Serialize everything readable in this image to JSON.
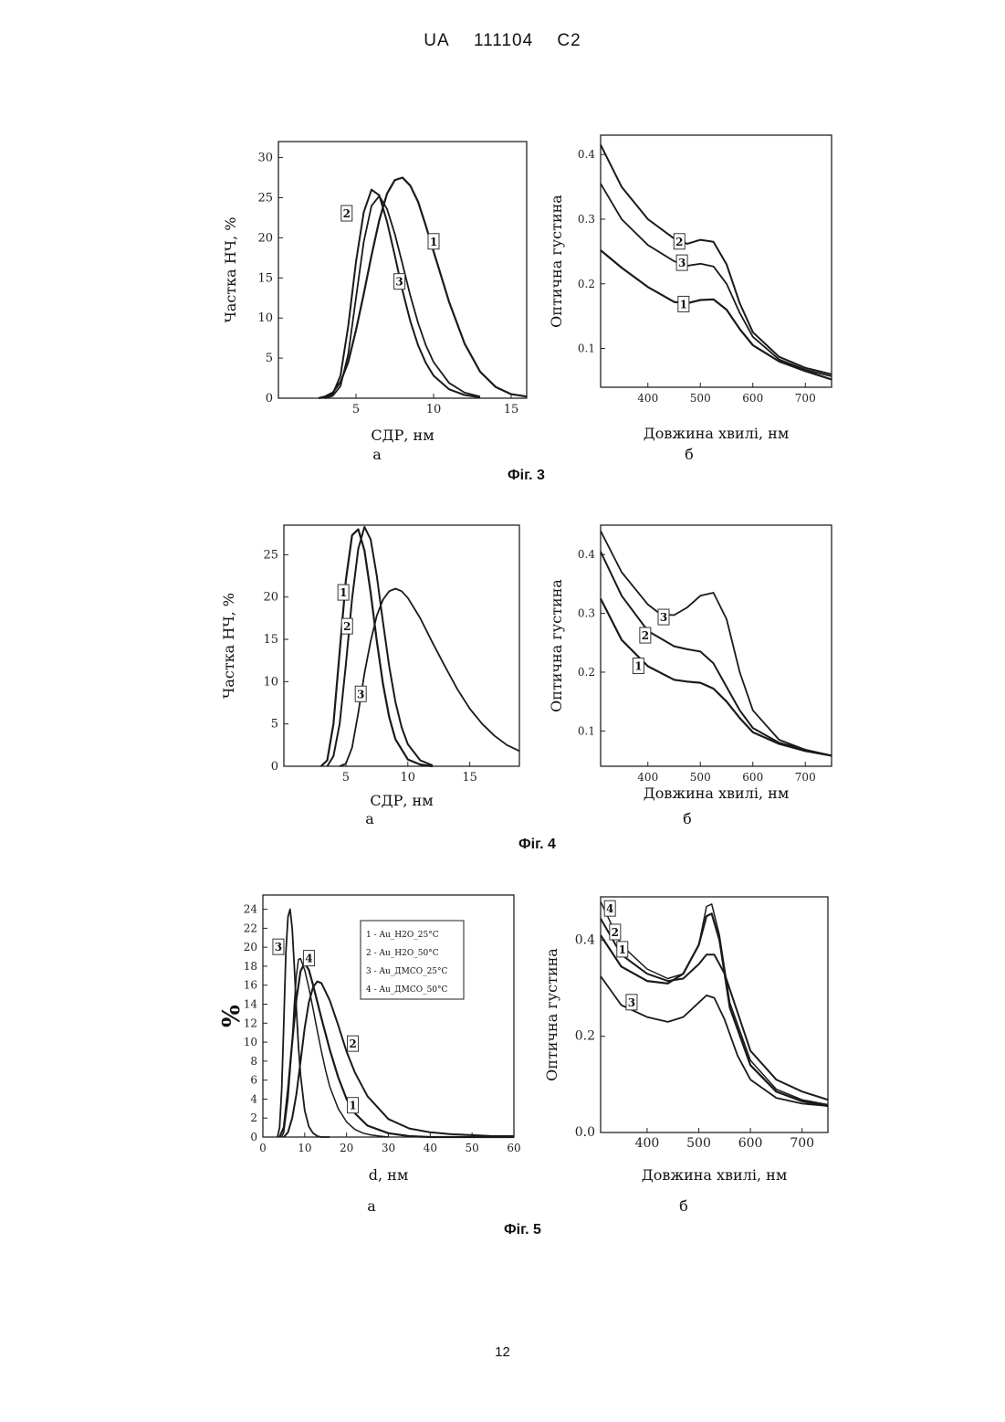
{
  "header": {
    "country": "UA",
    "number": "111104",
    "kind": "C2"
  },
  "page_number": "12",
  "chart_data": [
    {
      "id": "f3a",
      "type": "line",
      "xlabel": "СДР, нм",
      "ylabel": "Частка НЧ, %",
      "sublabel": "а",
      "xlim": [
        0,
        16
      ],
      "ylim": [
        0,
        32
      ],
      "xticks": [
        5,
        10,
        15
      ],
      "yticks": [
        0,
        5,
        10,
        15,
        20,
        25,
        30
      ],
      "series": [
        {
          "label": "1",
          "x": [
            2.6,
            3,
            3.5,
            4,
            4.5,
            5,
            5.5,
            6,
            6.5,
            7,
            7.5,
            8,
            8.5,
            9,
            9.5,
            10,
            11,
            12,
            13,
            14,
            15,
            16
          ],
          "y": [
            0,
            0.2,
            0.7,
            2,
            4.5,
            8.5,
            13,
            17.8,
            22.2,
            25.5,
            27.2,
            27.5,
            26.5,
            24.5,
            21.5,
            18.3,
            12,
            6.8,
            3.3,
            1.4,
            0.5,
            0.2
          ]
        },
        {
          "label": "2",
          "x": [
            3,
            3.5,
            4,
            4.5,
            5,
            5.5,
            6,
            6.5,
            7,
            7.5,
            8,
            8.5,
            9,
            9.5,
            10,
            11,
            12,
            13
          ],
          "y": [
            0,
            0.5,
            2.8,
            9,
            17,
            23.2,
            26,
            25.3,
            22,
            17.8,
            13.4,
            9.6,
            6.6,
            4.4,
            2.8,
            1.1,
            0.4,
            0.1
          ]
        },
        {
          "label": "3",
          "x": [
            3,
            3.5,
            4,
            4.5,
            5,
            5.5,
            6,
            6.5,
            7,
            7.5,
            8,
            8.5,
            9,
            9.5,
            10,
            11,
            12,
            13
          ],
          "y": [
            0,
            0.3,
            1.5,
            5.5,
            12.5,
            19.5,
            24,
            25.2,
            23.6,
            20.5,
            16.7,
            12.8,
            9.4,
            6.6,
            4.5,
            1.9,
            0.7,
            0.2
          ]
        }
      ],
      "labels": [
        {
          "text": "1",
          "x": 10,
          "y": 19.5
        },
        {
          "text": "2",
          "x": 4.4,
          "y": 23
        },
        {
          "text": "3",
          "x": 7.8,
          "y": 14.5
        }
      ]
    },
    {
      "id": "f3b",
      "type": "line",
      "xlabel": "Довжина хвилі, нм",
      "ylabel": "Оптична густина",
      "sublabel": "б",
      "xlim": [
        310,
        750
      ],
      "ylim": [
        0.04,
        0.43
      ],
      "xticks": [
        400,
        500,
        600,
        700
      ],
      "yticks": [
        0.1,
        0.2,
        0.3,
        0.4
      ],
      "series": [
        {
          "label": "1",
          "x": [
            310,
            350,
            400,
            450,
            475,
            500,
            525,
            550,
            575,
            600,
            650,
            700,
            750
          ],
          "y": [
            0.252,
            0.225,
            0.195,
            0.172,
            0.17,
            0.175,
            0.176,
            0.16,
            0.13,
            0.105,
            0.08,
            0.065,
            0.052
          ]
        },
        {
          "label": "2",
          "x": [
            310,
            350,
            400,
            450,
            475,
            500,
            525,
            550,
            575,
            600,
            650,
            700,
            750
          ],
          "y": [
            0.415,
            0.35,
            0.3,
            0.27,
            0.262,
            0.268,
            0.265,
            0.23,
            0.17,
            0.125,
            0.087,
            0.07,
            0.06
          ]
        },
        {
          "label": "3",
          "x": [
            310,
            350,
            400,
            450,
            475,
            500,
            525,
            550,
            575,
            600,
            650,
            700,
            750
          ],
          "y": [
            0.355,
            0.3,
            0.26,
            0.235,
            0.228,
            0.231,
            0.227,
            0.2,
            0.155,
            0.118,
            0.083,
            0.067,
            0.057
          ]
        }
      ],
      "labels": [
        {
          "text": "2",
          "x": 460,
          "y": 0.265
        },
        {
          "text": "3",
          "x": 465,
          "y": 0.232
        },
        {
          "text": "1",
          "x": 468,
          "y": 0.168
        }
      ]
    },
    {
      "id": "f4a",
      "type": "line",
      "xlabel": "СДР, нм",
      "ylabel": "Частка НЧ, %",
      "sublabel": "а",
      "xlim": [
        0,
        19
      ],
      "ylim": [
        0,
        28.5
      ],
      "xticks": [
        5,
        10,
        15
      ],
      "yticks": [
        0,
        5,
        10,
        15,
        20,
        25
      ],
      "series": [
        {
          "label": "1",
          "x": [
            3,
            3.5,
            4,
            4.5,
            5,
            5.5,
            6,
            6.5,
            7,
            7.5,
            8,
            8.5,
            9,
            10,
            11,
            12
          ],
          "y": [
            0,
            0.7,
            5,
            13.5,
            22,
            27.3,
            28,
            25.5,
            20.5,
            14.8,
            9.7,
            5.8,
            3.2,
            0.8,
            0.2,
            0
          ]
        },
        {
          "label": "2",
          "x": [
            3.5,
            4,
            4.5,
            5,
            5.5,
            6,
            6.5,
            7,
            7.5,
            8,
            8.5,
            9,
            9.5,
            10,
            11,
            12
          ],
          "y": [
            0,
            1.2,
            5,
            12,
            19.8,
            25.7,
            28.3,
            26.8,
            22.5,
            17,
            11.8,
            7.6,
            4.6,
            2.6,
            0.7,
            0.1
          ]
        },
        {
          "label": "3",
          "x": [
            4.5,
            5,
            5.5,
            6,
            6.5,
            7,
            7.5,
            8,
            8.5,
            9,
            9.5,
            10,
            11,
            12,
            13,
            14,
            15,
            16,
            17,
            18,
            19
          ],
          "y": [
            0,
            0.3,
            2.2,
            6.3,
            11,
            14.8,
            17.8,
            19.7,
            20.7,
            21,
            20.7,
            19.9,
            17.5,
            14.6,
            11.8,
            9.1,
            6.8,
            5,
            3.6,
            2.5,
            1.8
          ]
        }
      ],
      "labels": [
        {
          "text": "1",
          "x": 4.8,
          "y": 20.5
        },
        {
          "text": "2",
          "x": 5.1,
          "y": 16.5
        },
        {
          "text": "3",
          "x": 6.2,
          "y": 8.5
        }
      ]
    },
    {
      "id": "f4b",
      "type": "line",
      "xlabel": "Довжина хвилі, нм",
      "ylabel": "Оптична густина",
      "sublabel": "б",
      "xlim": [
        310,
        750
      ],
      "ylim": [
        0.04,
        0.45
      ],
      "xticks": [
        400,
        500,
        600,
        700
      ],
      "yticks": [
        0.1,
        0.2,
        0.3,
        0.4
      ],
      "series": [
        {
          "label": "1",
          "x": [
            310,
            350,
            400,
            450,
            475,
            500,
            525,
            550,
            575,
            600,
            650,
            700,
            750
          ],
          "y": [
            0.325,
            0.255,
            0.21,
            0.187,
            0.184,
            0.182,
            0.172,
            0.15,
            0.122,
            0.098,
            0.078,
            0.066,
            0.058
          ]
        },
        {
          "label": "2",
          "x": [
            310,
            350,
            400,
            450,
            475,
            500,
            525,
            550,
            575,
            600,
            650,
            700,
            750
          ],
          "y": [
            0.405,
            0.33,
            0.27,
            0.244,
            0.239,
            0.235,
            0.215,
            0.175,
            0.135,
            0.105,
            0.08,
            0.068,
            0.058
          ]
        },
        {
          "label": "3",
          "x": [
            310,
            350,
            400,
            425,
            450,
            475,
            500,
            525,
            550,
            575,
            600,
            650,
            700,
            750
          ],
          "y": [
            0.44,
            0.37,
            0.315,
            0.298,
            0.297,
            0.31,
            0.33,
            0.335,
            0.29,
            0.2,
            0.135,
            0.085,
            0.068,
            0.058
          ]
        }
      ],
      "labels": [
        {
          "text": "3",
          "x": 430,
          "y": 0.293
        },
        {
          "text": "2",
          "x": 395,
          "y": 0.262
        },
        {
          "text": "1",
          "x": 382,
          "y": 0.21
        }
      ]
    },
    {
      "id": "f5a",
      "type": "line",
      "xlabel": "d, нм",
      "ylabel": "%",
      "sublabel": "а",
      "xlim": [
        0,
        60
      ],
      "ylim": [
        0,
        25.5
      ],
      "xticks": [
        0,
        10,
        20,
        30,
        40,
        50,
        60
      ],
      "yticks": [
        0,
        2,
        4,
        6,
        8,
        10,
        12,
        14,
        16,
        18,
        20,
        22,
        24
      ],
      "legend": [
        "1 - Au_H2O_25°C",
        "2 - Au_H2O_50°C",
        "3 - Au_ДМСО_25°C",
        "4 - Au_ДМСО_50°C"
      ],
      "series": [
        {
          "label": "1",
          "x": [
            4,
            5,
            6,
            7,
            8,
            9,
            10,
            11,
            12,
            14,
            16,
            18,
            20,
            22,
            25,
            30,
            35,
            40,
            50,
            60
          ],
          "y": [
            0,
            1,
            5,
            10,
            14.5,
            17.5,
            18.3,
            17.6,
            16,
            12.5,
            9.2,
            6.3,
            4,
            2.5,
            1.2,
            0.4,
            0.1,
            0,
            0,
            0
          ]
        },
        {
          "label": "2",
          "x": [
            5,
            6,
            7,
            8,
            9,
            10,
            11,
            12,
            13,
            14,
            16,
            18,
            20,
            22,
            25,
            30,
            35,
            40,
            45,
            50,
            55,
            60
          ],
          "y": [
            0,
            0.5,
            2,
            4.5,
            8,
            11.5,
            14.2,
            15.8,
            16.4,
            16.2,
            14.4,
            11.8,
            9,
            6.8,
            4.3,
            1.9,
            0.9,
            0.5,
            0.3,
            0.2,
            0.1,
            0.1
          ]
        },
        {
          "label": "3",
          "x": [
            3.5,
            4,
            4.5,
            5,
            5.5,
            6,
            6.5,
            7,
            7.5,
            8,
            8.5,
            9,
            10,
            11,
            12,
            13,
            14,
            16
          ],
          "y": [
            0,
            1,
            5,
            12,
            19.5,
            23.2,
            24,
            22,
            18,
            13.5,
            9.5,
            6.5,
            2.8,
            1.1,
            0.4,
            0.1,
            0,
            0
          ]
        },
        {
          "label": "4",
          "x": [
            4.5,
            5,
            6,
            7,
            7.5,
            8,
            8.5,
            9,
            10,
            11,
            12,
            13,
            14,
            15,
            16,
            18,
            20,
            22,
            24,
            26,
            28,
            30
          ],
          "y": [
            0,
            0.5,
            4,
            10,
            14,
            17,
            18.7,
            18.8,
            17.6,
            15.7,
            13.5,
            11.2,
            9,
            7,
            5.3,
            3,
            1.6,
            0.8,
            0.4,
            0.2,
            0.1,
            0
          ]
        }
      ],
      "labels": [
        {
          "text": "3",
          "x": 3.7,
          "y": 20
        },
        {
          "text": "4",
          "x": 11,
          "y": 18.8
        },
        {
          "text": "2",
          "x": 21.5,
          "y": 9.8
        },
        {
          "text": "1",
          "x": 21.5,
          "y": 3.3
        }
      ]
    },
    {
      "id": "f5b",
      "type": "line",
      "xlabel": "Довжина хвилі, нм",
      "ylabel": "Оптична густина",
      "sublabel": "б",
      "xlim": [
        310,
        750
      ],
      "ylim": [
        0,
        0.49
      ],
      "xticks": [
        400,
        500,
        600,
        700
      ],
      "yticks": [
        0.0,
        0.2,
        0.4
      ],
      "series": [
        {
          "label": "1",
          "x": [
            310,
            350,
            400,
            440,
            470,
            500,
            515,
            525,
            540,
            560,
            600,
            650,
            700,
            750
          ],
          "y": [
            0.41,
            0.345,
            0.315,
            0.31,
            0.33,
            0.39,
            0.45,
            0.455,
            0.4,
            0.26,
            0.14,
            0.085,
            0.065,
            0.055
          ]
        },
        {
          "label": "2",
          "x": [
            310,
            350,
            400,
            440,
            470,
            500,
            515,
            530,
            550,
            575,
            600,
            650,
            700,
            750
          ],
          "y": [
            0.445,
            0.37,
            0.33,
            0.315,
            0.32,
            0.35,
            0.37,
            0.37,
            0.33,
            0.25,
            0.17,
            0.11,
            0.085,
            0.068
          ]
        },
        {
          "label": "3",
          "x": [
            310,
            350,
            400,
            440,
            470,
            500,
            515,
            530,
            550,
            575,
            600,
            650,
            700,
            750
          ],
          "y": [
            0.325,
            0.265,
            0.24,
            0.23,
            0.24,
            0.27,
            0.285,
            0.28,
            0.235,
            0.16,
            0.11,
            0.072,
            0.06,
            0.055
          ]
        },
        {
          "label": "4",
          "x": [
            310,
            350,
            400,
            440,
            470,
            500,
            515,
            525,
            540,
            560,
            600,
            650,
            700,
            750
          ],
          "y": [
            0.48,
            0.39,
            0.34,
            0.32,
            0.33,
            0.39,
            0.47,
            0.475,
            0.41,
            0.27,
            0.15,
            0.09,
            0.068,
            0.058
          ]
        }
      ],
      "labels": [
        {
          "text": "4",
          "x": 328,
          "y": 0.465
        },
        {
          "text": "2",
          "x": 338,
          "y": 0.416
        },
        {
          "text": "1",
          "x": 352,
          "y": 0.38
        },
        {
          "text": "3",
          "x": 370,
          "y": 0.27
        }
      ]
    }
  ],
  "figures": {
    "fig3": "Фіг. 3",
    "fig4": "Фіг. 4",
    "fig5": "Фіг. 5"
  }
}
